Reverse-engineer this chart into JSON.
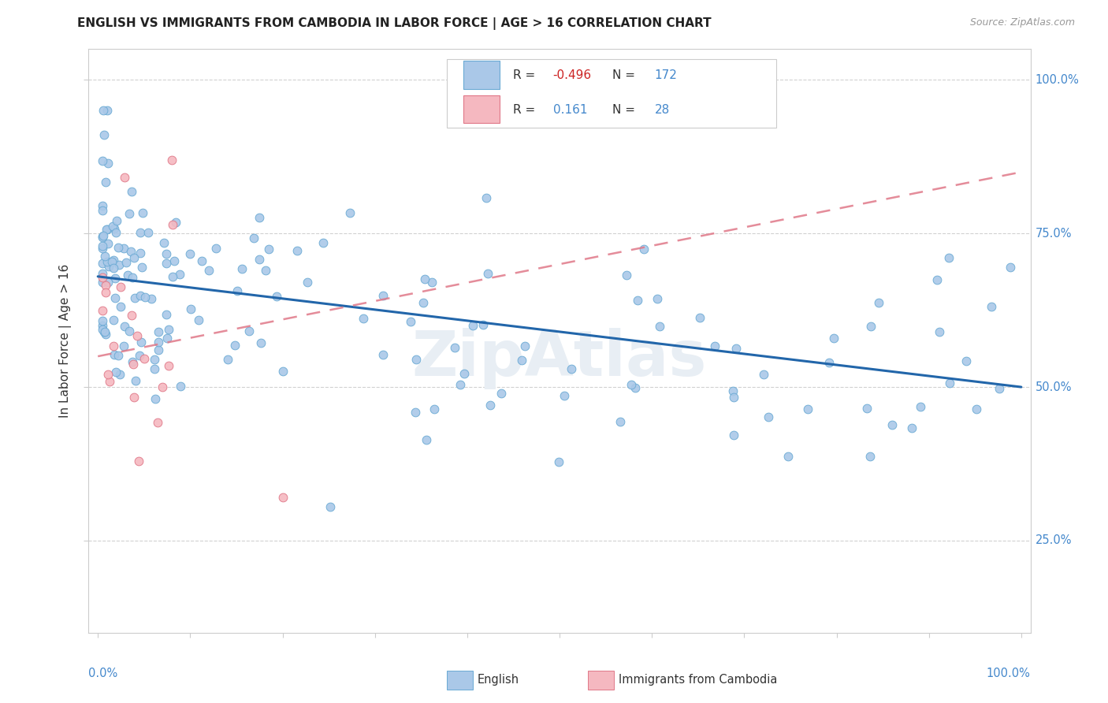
{
  "title": "ENGLISH VS IMMIGRANTS FROM CAMBODIA IN LABOR FORCE | AGE > 16 CORRELATION CHART",
  "source": "Source: ZipAtlas.com",
  "ylabel": "In Labor Force | Age > 16",
  "english_color": "#aac8e8",
  "english_edge_color": "#6aaad4",
  "cambodia_color": "#f5b8c0",
  "cambodia_edge_color": "#e07888",
  "english_line_color": "#2266aa",
  "cambodia_line_color": "#e07888",
  "watermark_color": "#e8eef4",
  "ytick_vals": [
    0.25,
    0.5,
    0.75,
    1.0
  ],
  "ytick_labels": [
    "25.0%",
    "50.0%",
    "75.0%",
    "100.0%"
  ],
  "xlim": [
    0.0,
    1.0
  ],
  "ylim": [
    0.1,
    1.05
  ]
}
